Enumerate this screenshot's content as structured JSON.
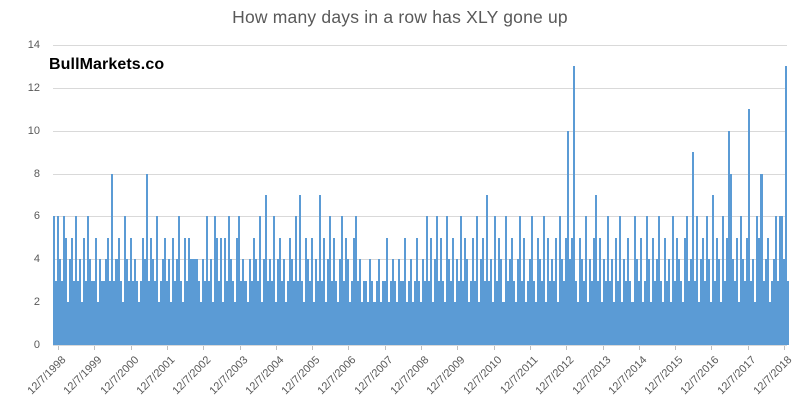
{
  "title": "How many days in a row has XLY gone up",
  "watermark": "BullMarkets.co",
  "colors": {
    "bar": "#5b9bd5",
    "gridline": "#d9d9d9",
    "axis_text": "#595959",
    "title_text": "#595959",
    "tick_mark": "#bfbfbf",
    "background": "#ffffff",
    "watermark_text": "#000000"
  },
  "chart_data": {
    "type": "bar",
    "title": "How many days in a row has XLY gone up",
    "xlabel": "",
    "ylabel": "",
    "ylim": [
      0,
      14
    ],
    "yticks": [
      0,
      2,
      4,
      6,
      8,
      10,
      12,
      14
    ],
    "grid": true,
    "legend": false,
    "x_tick_labels": [
      "12/7/1998",
      "12/7/1999",
      "12/7/2000",
      "12/7/2001",
      "12/7/2002",
      "12/7/2003",
      "12/7/2004",
      "12/7/2005",
      "12/7/2006",
      "12/7/2007",
      "12/7/2008",
      "12/7/2009",
      "12/7/2010",
      "12/7/2011",
      "12/7/2012",
      "12/7/2013",
      "12/7/2014",
      "12/7/2015",
      "12/7/2016",
      "12/7/2017",
      "12/7/2018"
    ],
    "x_description": "Daily consecutive-up-day streak lengths for XLY from 12/7/1998 through 2018; values below are a downsampled reading of the dense bar series",
    "values": [
      6,
      3,
      6,
      4,
      3,
      6,
      5,
      2,
      4,
      5,
      3,
      6,
      3,
      4,
      2,
      5,
      3,
      6,
      4,
      3,
      3,
      5,
      2,
      4,
      3,
      3,
      4,
      5,
      3,
      8,
      3,
      4,
      5,
      3,
      2,
      6,
      4,
      3,
      5,
      3,
      4,
      3,
      2,
      3,
      5,
      4,
      8,
      3,
      5,
      4,
      3,
      6,
      2,
      3,
      4,
      5,
      3,
      4,
      2,
      5,
      3,
      4,
      6,
      3,
      2,
      5,
      3,
      5,
      4,
      4,
      4,
      4,
      3,
      2,
      4,
      3,
      6,
      3,
      4,
      2,
      6,
      5,
      3,
      5,
      2,
      5,
      3,
      6,
      4,
      3,
      2,
      5,
      6,
      3,
      4,
      3,
      2,
      4,
      3,
      5,
      4,
      3,
      6,
      2,
      4,
      7,
      3,
      4,
      3,
      6,
      2,
      4,
      5,
      3,
      4,
      2,
      3,
      5,
      4,
      3,
      6,
      3,
      7,
      3,
      2,
      5,
      4,
      3,
      5,
      2,
      4,
      3,
      7,
      3,
      5,
      2,
      4,
      6,
      3,
      5,
      3,
      2,
      4,
      6,
      3,
      5,
      4,
      2,
      3,
      5,
      6,
      3,
      4,
      2,
      3,
      3,
      2,
      4,
      3,
      2,
      3,
      4,
      2,
      3,
      3,
      5,
      2,
      3,
      4,
      3,
      2,
      4,
      3,
      3,
      5,
      2,
      3,
      4,
      2,
      3,
      5,
      3,
      2,
      4,
      3,
      6,
      3,
      5,
      2,
      4,
      6,
      3,
      5,
      3,
      2,
      6,
      4,
      3,
      5,
      2,
      4,
      3,
      6,
      3,
      5,
      4,
      2,
      3,
      5,
      3,
      6,
      2,
      4,
      5,
      3,
      7,
      3,
      4,
      2,
      6,
      3,
      5,
      4,
      2,
      6,
      3,
      4,
      5,
      3,
      2,
      4,
      6,
      3,
      5,
      2,
      3,
      4,
      6,
      3,
      2,
      5,
      4,
      3,
      6,
      2,
      5,
      3,
      4,
      3,
      5,
      2,
      6,
      4,
      3,
      5,
      10,
      4,
      5,
      13,
      3,
      2,
      5,
      4,
      3,
      6,
      2,
      4,
      3,
      5,
      7,
      3,
      5,
      2,
      4,
      3,
      6,
      3,
      4,
      2,
      5,
      3,
      6,
      2,
      4,
      3,
      5,
      3,
      2,
      6,
      4,
      3,
      5,
      2,
      3,
      6,
      4,
      2,
      5,
      3,
      4,
      6,
      3,
      2,
      5,
      3,
      4,
      2,
      6,
      3,
      5,
      4,
      3,
      2,
      5,
      6,
      3,
      4,
      9,
      3,
      6,
      2,
      4,
      5,
      3,
      6,
      4,
      2,
      7,
      3,
      5,
      4,
      2,
      6,
      3,
      5,
      10,
      8,
      4,
      3,
      5,
      2,
      6,
      4,
      3,
      5,
      11,
      3,
      4,
      2,
      6,
      5,
      8,
      3,
      4,
      5,
      2,
      3,
      4,
      6,
      3,
      6,
      6,
      4,
      13,
      3
    ],
    "notable_peaks": [
      {
        "value": 8,
        "approx_date": "late 1999"
      },
      {
        "value": 8,
        "approx_date": "late 2000"
      },
      {
        "value": 7,
        "approx_date": "2003"
      },
      {
        "value": 7,
        "approx_date": "2004"
      },
      {
        "value": 7,
        "approx_date": "2005"
      },
      {
        "value": 7,
        "approx_date": "2010"
      },
      {
        "value": 10,
        "approx_date": "2013"
      },
      {
        "value": 13,
        "approx_date": "2013"
      },
      {
        "value": 9,
        "approx_date": "2016"
      },
      {
        "value": 10,
        "approx_date": "2017"
      },
      {
        "value": 11,
        "approx_date": "2017-2018"
      },
      {
        "value": 13,
        "approx_date": "right edge (2019)"
      }
    ]
  }
}
